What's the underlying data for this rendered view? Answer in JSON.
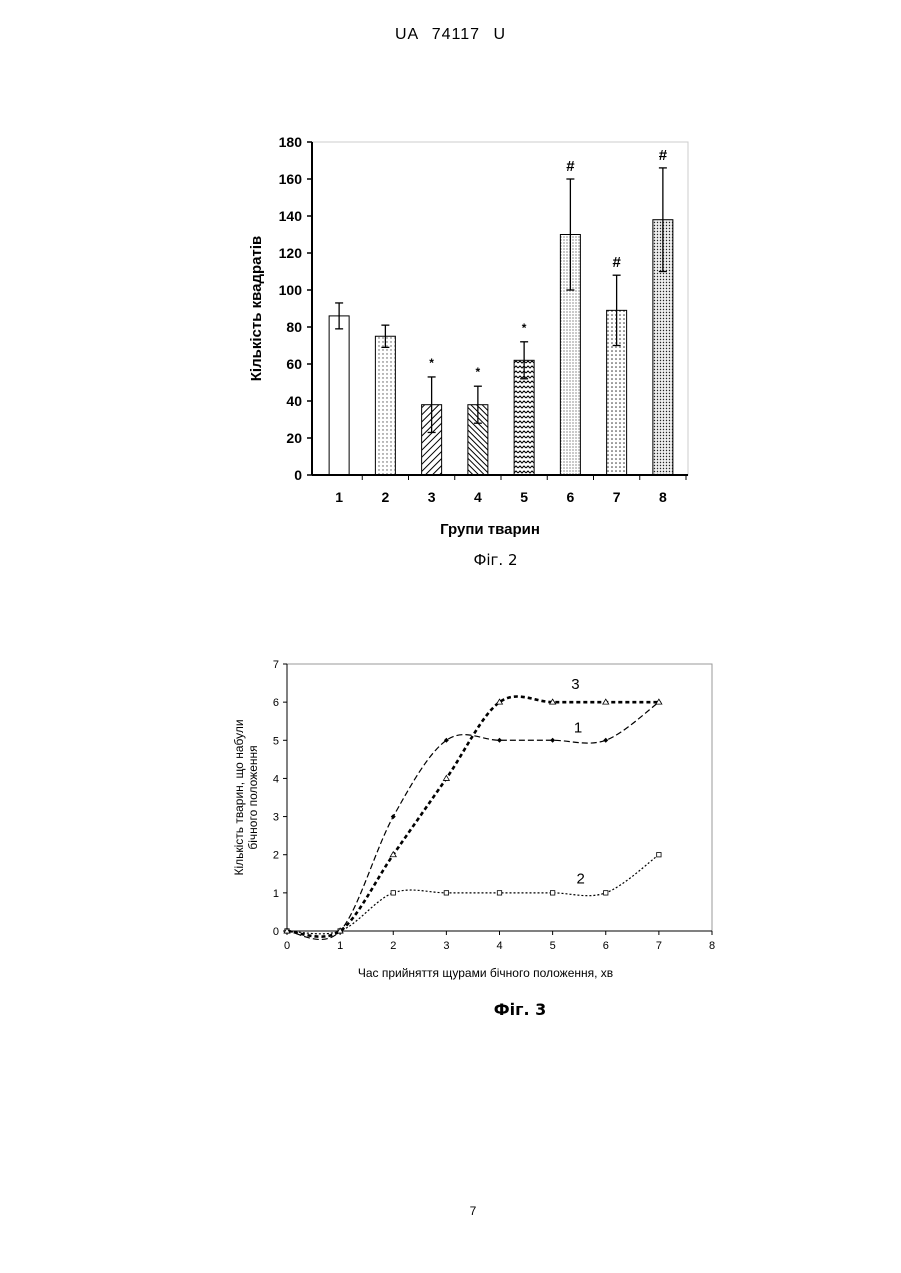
{
  "header": {
    "text": "UA   74117   U"
  },
  "page_number": "7",
  "figures": {
    "fig2_caption": "Фіг. 2",
    "fig3_caption": "Фіг. 3"
  },
  "chart_data": [
    {
      "type": "bar",
      "xlabel": "Групи тварин",
      "ylabel": "Кількість квадратів",
      "ylim": [
        0,
        180
      ],
      "yticks": [
        0,
        20,
        40,
        60,
        80,
        100,
        120,
        140,
        160,
        180
      ],
      "categories": [
        "1",
        "2",
        "3",
        "4",
        "5",
        "6",
        "7",
        "8"
      ],
      "values": [
        86,
        75,
        38,
        38,
        62,
        130,
        89,
        138
      ],
      "errors": [
        7,
        6,
        15,
        10,
        10,
        30,
        19,
        28
      ],
      "markers": [
        "",
        "",
        "*",
        "*",
        "*",
        "#",
        "#",
        "#"
      ],
      "grid": false
    },
    {
      "type": "line",
      "xlabel": "Час прийняття щурами бічного положення, хв",
      "ylabel": "Кількість тварин, що набули бічного положення",
      "xlim": [
        0,
        8
      ],
      "ylim": [
        0,
        7
      ],
      "xticks": [
        0,
        1,
        2,
        3,
        4,
        5,
        6,
        7,
        8
      ],
      "yticks": [
        0,
        1,
        2,
        3,
        4,
        5,
        6,
        7
      ],
      "x": [
        0,
        1,
        2,
        3,
        4,
        5,
        6,
        7
      ],
      "series": [
        {
          "name": "1",
          "values": [
            0,
            0,
            3,
            5,
            5,
            5,
            5,
            6
          ]
        },
        {
          "name": "2",
          "values": [
            0,
            0,
            1,
            1,
            1,
            1,
            1,
            2
          ]
        },
        {
          "name": "3",
          "values": [
            0,
            0,
            2,
            4,
            6,
            6,
            6,
            6
          ]
        }
      ],
      "grid": false
    }
  ]
}
